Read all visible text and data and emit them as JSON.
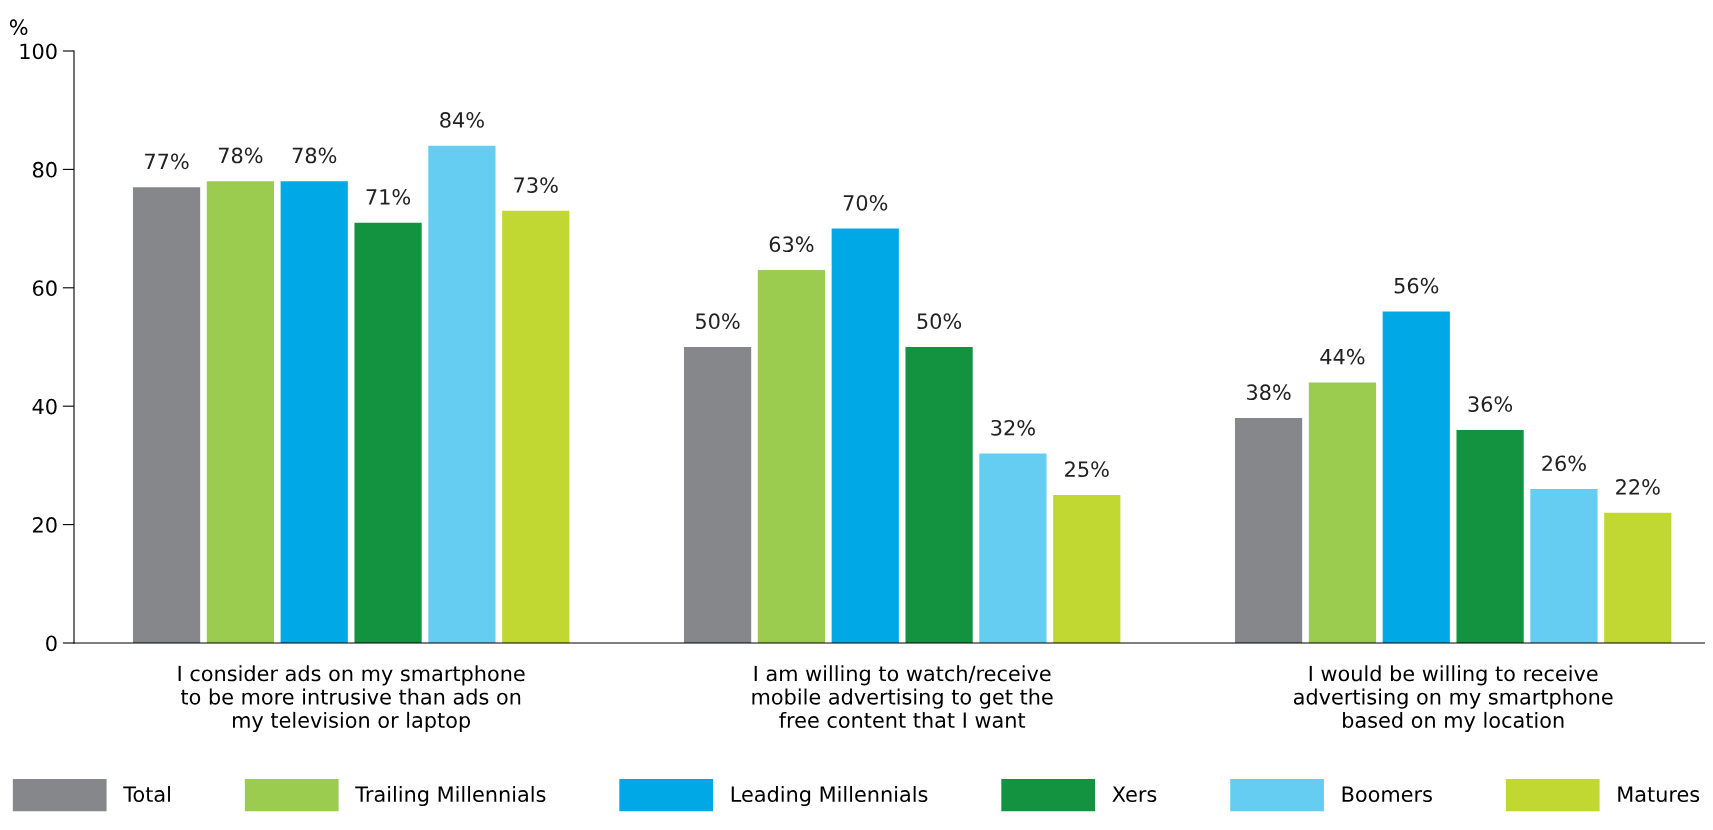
{
  "chart_data": {
    "type": "bar",
    "ylabel": "%",
    "categories": [
      "I consider ads on my smartphone\nto be more intrusive than ads on\nmy television or laptop",
      "I am willing to watch/receive\nmobile advertising to get the\nfree content that I want",
      "I would be willing to receive\nadvertising on my smartphone\nbased on my location"
    ],
    "series": [
      {
        "name": "Total",
        "color": "#85878a",
        "values": [
          77,
          50,
          38
        ],
        "value_labels": [
          "77%",
          "50%",
          "38%"
        ]
      },
      {
        "name": "Trailing Millennials",
        "color": "#9bcb4f",
        "values": [
          78,
          63,
          44
        ],
        "value_labels": [
          "78%",
          "63%",
          "44%"
        ]
      },
      {
        "name": "Leading Millennials",
        "color": "#00a9e6",
        "values": [
          78,
          70,
          56
        ],
        "value_labels": [
          "78%",
          "70%",
          "56%"
        ]
      },
      {
        "name": "Xers",
        "color": "#13923f",
        "values": [
          71,
          50,
          36
        ],
        "value_labels": [
          "71%",
          "50%",
          "36%"
        ]
      },
      {
        "name": "Boomers",
        "color": "#66cdf2",
        "values": [
          84,
          32,
          26
        ],
        "value_labels": [
          "84%",
          "32%",
          "26%"
        ]
      },
      {
        "name": "Matures",
        "color": "#c2d832",
        "values": [
          73,
          25,
          22
        ],
        "value_labels": [
          "73%",
          "25%",
          "22%"
        ]
      }
    ],
    "ylim": [
      0,
      100
    ],
    "yticks": [
      0,
      20,
      40,
      60,
      80,
      100
    ],
    "grid": false,
    "legend": "bottom"
  }
}
